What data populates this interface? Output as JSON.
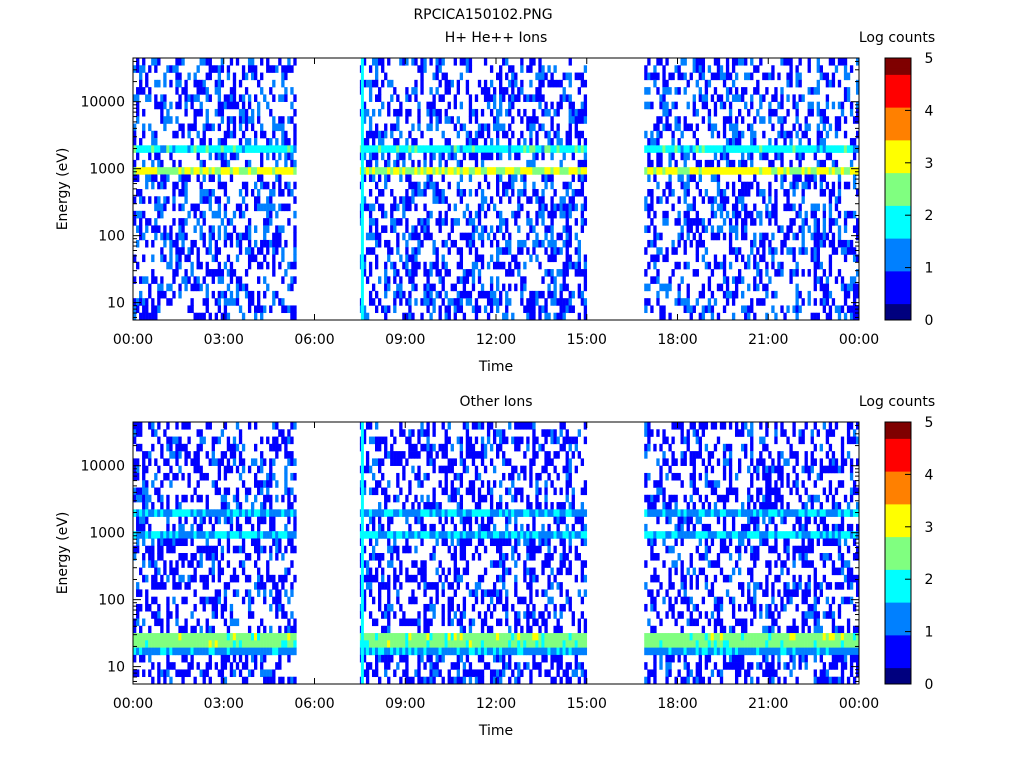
{
  "figure_title": "RPCICA150102.PNG",
  "colors": {
    "cmap": [
      "#00007f",
      "#0000ff",
      "#0080ff",
      "#00ffff",
      "#80ff80",
      "#ffff00",
      "#ff8000",
      "#ff0000",
      "#7f0000"
    ]
  },
  "chart_data": [
    {
      "type": "heatmap",
      "title": "H+ He++ Ions",
      "xlabel": "Time",
      "ylabel": "Energy (eV)",
      "x_tick_labels": [
        "00:00",
        "03:00",
        "06:00",
        "09:00",
        "12:00",
        "15:00",
        "18:00",
        "21:00",
        "00:00"
      ],
      "x_ticks_hours": [
        0,
        3,
        6,
        9,
        12,
        15,
        18,
        21,
        24
      ],
      "xlim_hours": [
        0,
        24
      ],
      "y_scale": "log",
      "y_tick_labels": [
        "10",
        "100",
        "1000",
        "10000"
      ],
      "y_ticks": [
        10,
        100,
        1000,
        10000
      ],
      "ylim": [
        5.5,
        45000
      ],
      "colorbar": {
        "label": "Log counts",
        "range": [
          0,
          5
        ],
        "tick_labels": [
          "0",
          "1",
          "2",
          "3",
          "4",
          "5"
        ]
      },
      "data_intervals_hours": [
        [
          0,
          5.4
        ],
        [
          7.5,
          15.0
        ],
        [
          16.9,
          24
        ]
      ],
      "spike_hours": 7.6,
      "bands": [
        {
          "energy_ev": 900,
          "log_counts": 3.0,
          "intervals_hours": [
            [
              0,
              5.4
            ],
            [
              7.6,
              15.0
            ],
            [
              16.9,
              24
            ]
          ]
        },
        {
          "energy_ev": 1900,
          "log_counts": 2.0,
          "intervals_hours": [
            [
              0,
              5.4
            ],
            [
              7.6,
              15.0
            ],
            [
              16.9,
              24
            ]
          ]
        }
      ],
      "background_log_counts": 0.5
    },
    {
      "type": "heatmap",
      "title": "Other Ions",
      "xlabel": "Time",
      "ylabel": "Energy (eV)",
      "x_tick_labels": [
        "00:00",
        "03:00",
        "06:00",
        "09:00",
        "12:00",
        "15:00",
        "18:00",
        "21:00",
        "00:00"
      ],
      "x_ticks_hours": [
        0,
        3,
        6,
        9,
        12,
        15,
        18,
        21,
        24
      ],
      "xlim_hours": [
        0,
        24
      ],
      "y_scale": "log",
      "y_tick_labels": [
        "10",
        "100",
        "1000",
        "10000"
      ],
      "y_ticks": [
        10,
        100,
        1000,
        10000
      ],
      "ylim": [
        5.5,
        45000
      ],
      "colorbar": {
        "label": "Log counts",
        "range": [
          0,
          5
        ],
        "tick_labels": [
          "0",
          "1",
          "2",
          "3",
          "4",
          "5"
        ]
      },
      "data_intervals_hours": [
        [
          0,
          5.4
        ],
        [
          7.5,
          15.0
        ],
        [
          16.9,
          24
        ]
      ],
      "spike_hours": 7.6,
      "bands": [
        {
          "energy_ev": 25,
          "log_counts": 2.8,
          "intervals_hours": [
            [
              0,
              5.4
            ],
            [
              7.6,
              15.0
            ],
            [
              16.9,
              24
            ]
          ]
        },
        {
          "energy_ev": 18,
          "log_counts": 1.5,
          "intervals_hours": [
            [
              0,
              5.4
            ],
            [
              7.6,
              15.0
            ],
            [
              16.9,
              24
            ]
          ]
        },
        {
          "energy_ev": 2000,
          "log_counts": 1.5,
          "intervals_hours": [
            [
              0,
              5.4
            ],
            [
              7.6,
              15.0
            ],
            [
              16.9,
              24
            ]
          ]
        },
        {
          "energy_ev": 950,
          "log_counts": 1.6,
          "intervals_hours": [
            [
              0,
              5.4
            ],
            [
              7.6,
              15.0
            ],
            [
              16.9,
              24
            ]
          ]
        }
      ],
      "background_log_counts": 0.4
    }
  ]
}
